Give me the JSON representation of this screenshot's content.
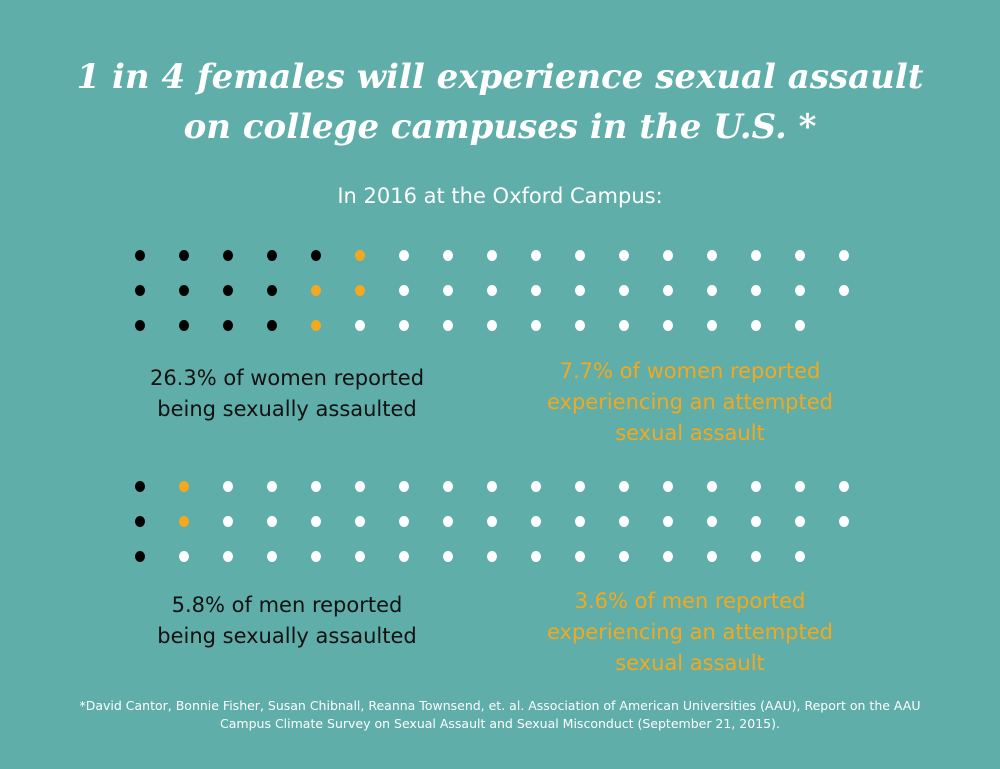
{
  "title": {
    "line1": "1 in 4 females will experience sexual assault",
    "line2": "on college campuses in the U.S. *"
  },
  "subtitle": "In 2016 at the Oxford Campus:",
  "colors": {
    "background": "#5FAEA9",
    "assaulted": "#000000",
    "attempted": "#F4A81D",
    "other": "#FFFFFF"
  },
  "women": {
    "dots_total": 50,
    "dots_assaulted": 13,
    "dots_attempted": 4,
    "assaulted_label": [
      "26.3% of women reported",
      "being sexually assaulted"
    ],
    "attempted_label": [
      "7.7% of women reported",
      "experiencing an attempted",
      "sexual assault"
    ]
  },
  "men": {
    "dots_total": 50,
    "dots_assaulted": 3,
    "dots_attempted": 2,
    "assaulted_label": [
      "5.8% of men reported",
      "being sexually assaulted"
    ],
    "attempted_label": [
      "3.6% of men reported",
      "experiencing an attempted",
      "sexual assault"
    ]
  },
  "footnote": [
    "*David Cantor, Bonnie Fisher, Susan Chibnall, Reanna Townsend, et. al. Association of American Universities (AAU), Report on the AAU",
    "Campus Climate Survey on Sexual Assault and Sexual Misconduct (September 21, 2015)."
  ]
}
